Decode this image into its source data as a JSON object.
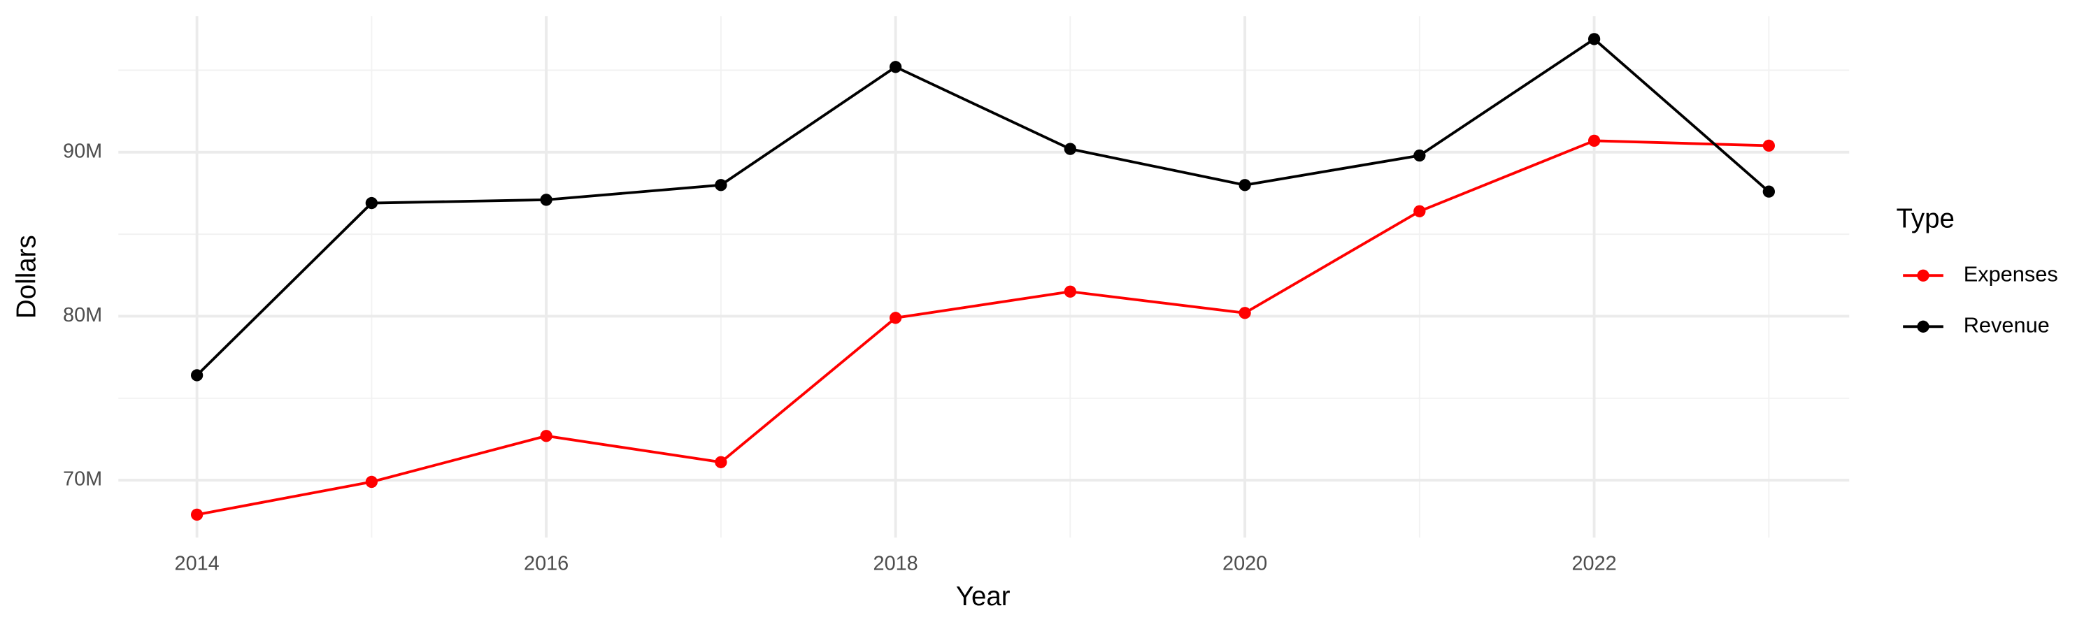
{
  "chart_data": {
    "type": "line",
    "x_label": "Year",
    "y_label": "Dollars",
    "legend_title": "Type",
    "legend_position": "right",
    "grid": true,
    "x": [
      2014,
      2015,
      2016,
      2017,
      2018,
      2019,
      2020,
      2021,
      2022,
      2023
    ],
    "series": [
      {
        "name": "Expenses",
        "color": "#ff0000",
        "values": [
          67900000,
          69900000,
          72700000,
          71100000,
          79900000,
          81500000,
          80200000,
          86400000,
          90700000,
          90400000
        ]
      },
      {
        "name": "Revenue",
        "color": "#000000",
        "values": [
          76400000,
          86900000,
          87100000,
          88000000,
          95200000,
          90200000,
          88000000,
          89800000,
          96900000,
          87600000
        ]
      }
    ],
    "xlim": [
      2013.55,
      2023.46
    ],
    "xticks": [
      2014,
      2016,
      2018,
      2020,
      2022
    ],
    "x_minor_ticks": [
      2015,
      2017,
      2019,
      2021,
      2023
    ],
    "ylim": [
      66500000,
      98300000
    ],
    "yticks": [
      {
        "value": 70000000,
        "label": "70M"
      },
      {
        "value": 80000000,
        "label": "80M"
      },
      {
        "value": 90000000,
        "label": "90M"
      }
    ],
    "y_minor_ticks": [
      75000000,
      85000000,
      95000000
    ]
  }
}
